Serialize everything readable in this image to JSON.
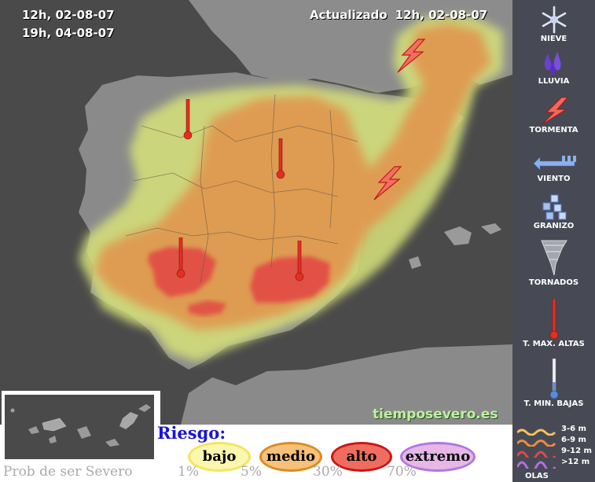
{
  "header": {
    "period_start": "12h, 02-08-07",
    "period_end": "19h, 04-08-07",
    "updated_label": "Actualizado",
    "updated_value": "12h, 02-08-07"
  },
  "watermark": "tiemposevero.es",
  "colors": {
    "sea": "#4a4a4a",
    "land": "#8a8a8a",
    "risk_bajo": "#d9e87a",
    "risk_medio": "#e6a060",
    "risk_alto": "#e04040",
    "risk_extremo": "#c890e0"
  },
  "legend": {
    "items": [
      {
        "icon": "snowflake-icon",
        "label": "NIEVE"
      },
      {
        "icon": "rain-icon",
        "label": "LLUVIA"
      },
      {
        "icon": "lightning-icon",
        "label": "TORMENTA"
      },
      {
        "icon": "wind-icon",
        "label": "VIENTO"
      },
      {
        "icon": "hail-icon",
        "label": "GRANIZO"
      },
      {
        "icon": "tornado-icon",
        "label": "TORNADOS"
      },
      {
        "icon": "thermometer-high-icon",
        "label": "T. MAX. ALTAS"
      },
      {
        "icon": "thermometer-low-icon",
        "label": "T. MIN. BAJAS"
      }
    ],
    "waves": {
      "rows": [
        "3-6 m",
        "6-9 m",
        "9-12 m",
        ">12 m"
      ],
      "label": "OLAS"
    }
  },
  "risk": {
    "title": "Riesgo",
    "levels": [
      {
        "label": "bajo",
        "prob": "1%"
      },
      {
        "label": "medio",
        "prob": "5%"
      },
      {
        "label": "alto",
        "prob": "30%"
      },
      {
        "label": "extremo",
        "prob": "70%"
      }
    ],
    "prob_label": "Prob de ser Severo"
  },
  "map_markers": [
    {
      "type": "thermometer-high",
      "region": "Castilla y León oeste"
    },
    {
      "type": "thermometer-high",
      "region": "Meseta central"
    },
    {
      "type": "thermometer-high",
      "region": "Extremadura/Andalucía"
    },
    {
      "type": "thermometer-high",
      "region": "Jaén/Granada"
    },
    {
      "type": "lightning",
      "region": "Cataluña/Francia"
    },
    {
      "type": "lightning",
      "region": "Comunidad Valenciana"
    }
  ]
}
